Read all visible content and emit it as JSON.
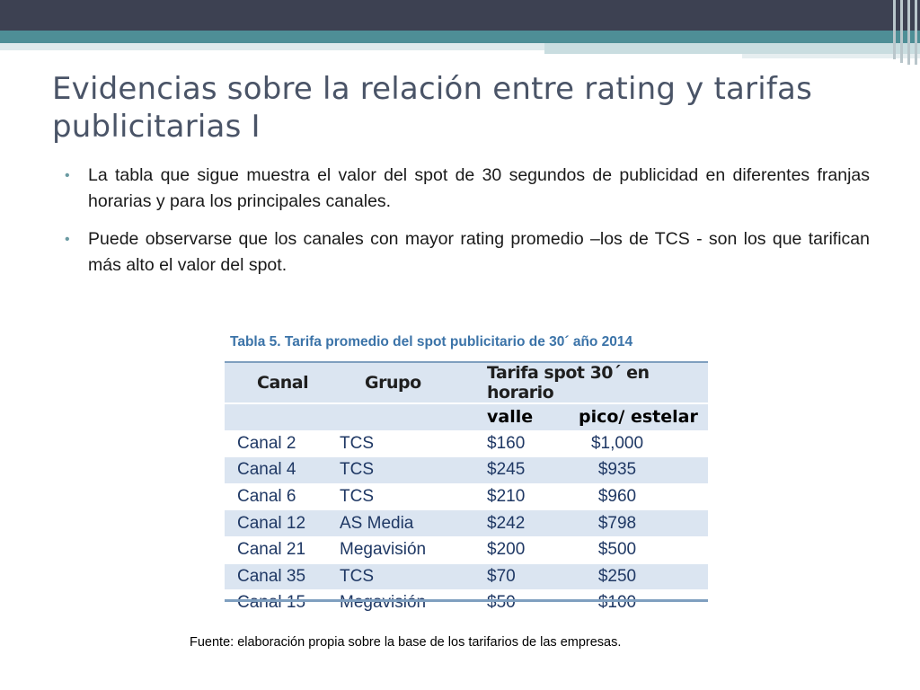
{
  "slide": {
    "title": "Evidencias sobre la relación entre rating y tarifas publicitarias I",
    "bullets": [
      "La tabla que sigue muestra el valor del spot de 30 segundos de publicidad en diferentes franjas horarias y para los principales canales.",
      "Puede observarse que los canales con mayor rating promedio –los de TCS - son los que tarifican más alto el valor del spot."
    ],
    "bullet_glyph": "•"
  },
  "table": {
    "caption": "Tabla 5. Tarifa promedio del spot publicitario de 30´ año 2014",
    "header": {
      "canal": "Canal",
      "grupo": "Grupo",
      "tarifa": "Tarifa spot 30´ en horario",
      "valle": "valle",
      "pico": "pico/ estelar"
    },
    "rows": [
      {
        "canal": "Canal 2",
        "grupo": "TCS",
        "valle": "$160",
        "pico": "$1,000"
      },
      {
        "canal": "Canal 4",
        "grupo": "TCS",
        "valle": "$245",
        "pico": "$935"
      },
      {
        "canal": "Canal 6",
        "grupo": "TCS",
        "valle": "$210",
        "pico": "$960"
      },
      {
        "canal": "Canal 12",
        "grupo": "AS Media",
        "valle": "$242",
        "pico": "$798"
      },
      {
        "canal": "Canal 21",
        "grupo": "Megavisión",
        "valle": "$200",
        "pico": "$500"
      },
      {
        "canal": "Canal 35",
        "grupo": "TCS",
        "valle": "$70",
        "pico": "$250"
      },
      {
        "canal": "Canal 15",
        "grupo": "Megavisión",
        "valle": "$50",
        "pico": "$100"
      }
    ]
  },
  "source": "Fuente: elaboración propia sobre la base de los tarifarios de las empresas.",
  "colors": {
    "header_dark": "#3d4152",
    "header_teal": "#4e8e96",
    "title": "#4a5467",
    "caption": "#3b73a8",
    "table_band": "#dbe5f1",
    "table_text": "#1f3864"
  }
}
